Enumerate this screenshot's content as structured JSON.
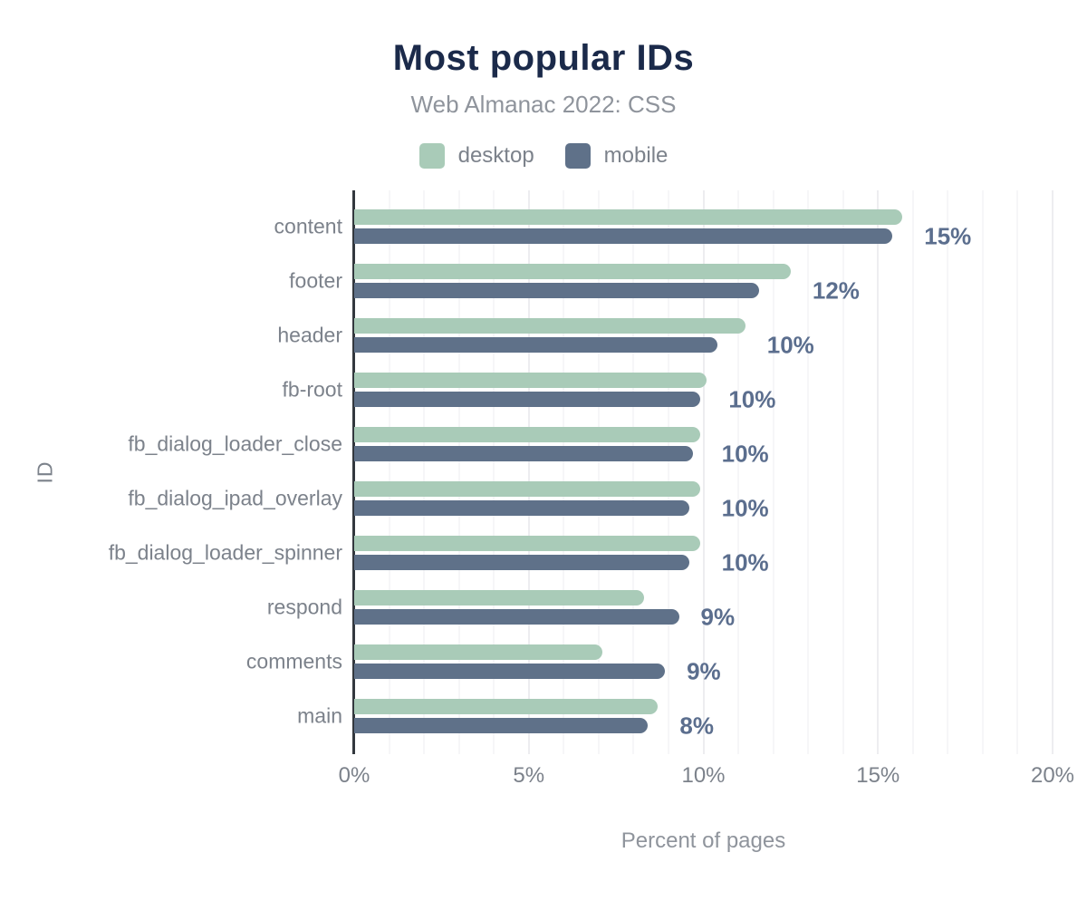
{
  "header": {
    "title": "Most popular IDs",
    "subtitle": "Web Almanac 2022: CSS"
  },
  "legend": {
    "items": [
      {
        "label": "desktop",
        "color": "#a9cbb8"
      },
      {
        "label": "mobile",
        "color": "#5f7189"
      }
    ]
  },
  "chart_data": {
    "type": "bar",
    "orientation": "horizontal",
    "title": "Most popular IDs",
    "subtitle": "Web Almanac 2022: CSS",
    "xlabel": "Percent of pages",
    "ylabel": "ID",
    "xlim": [
      0,
      20
    ],
    "x_ticks": [
      {
        "value": 0,
        "label": "0%"
      },
      {
        "value": 5,
        "label": "5%"
      },
      {
        "value": 10,
        "label": "10%"
      },
      {
        "value": 15,
        "label": "15%"
      },
      {
        "value": 20,
        "label": "20%"
      }
    ],
    "minor_grid_step": 1,
    "major_grid_step": 5,
    "grid": true,
    "legend_position": "top",
    "categories": [
      "content",
      "footer",
      "header",
      "fb-root",
      "fb_dialog_loader_close",
      "fb_dialog_ipad_overlay",
      "fb_dialog_loader_spinner",
      "respond",
      "comments",
      "main"
    ],
    "series": [
      {
        "name": "desktop",
        "color": "#a9cbb8",
        "values": [
          15.7,
          12.5,
          11.2,
          10.1,
          9.9,
          9.9,
          9.9,
          8.3,
          7.1,
          8.7
        ]
      },
      {
        "name": "mobile",
        "color": "#5f7189",
        "values": [
          15.4,
          11.6,
          10.4,
          9.9,
          9.7,
          9.6,
          9.6,
          9.3,
          8.9,
          8.4
        ]
      }
    ],
    "annotations": [
      "15%",
      "12%",
      "10%",
      "10%",
      "10%",
      "10%",
      "10%",
      "9%",
      "9%",
      "8%"
    ],
    "colors": {
      "title": "#1b2a4a",
      "subtitle": "#8f949c",
      "annotation": "#5b6e8e",
      "axis_line": "#33383e",
      "grid_minor": "#f6f6f8",
      "grid_major": "#ededf0",
      "tick_text": "#7c828b"
    }
  }
}
